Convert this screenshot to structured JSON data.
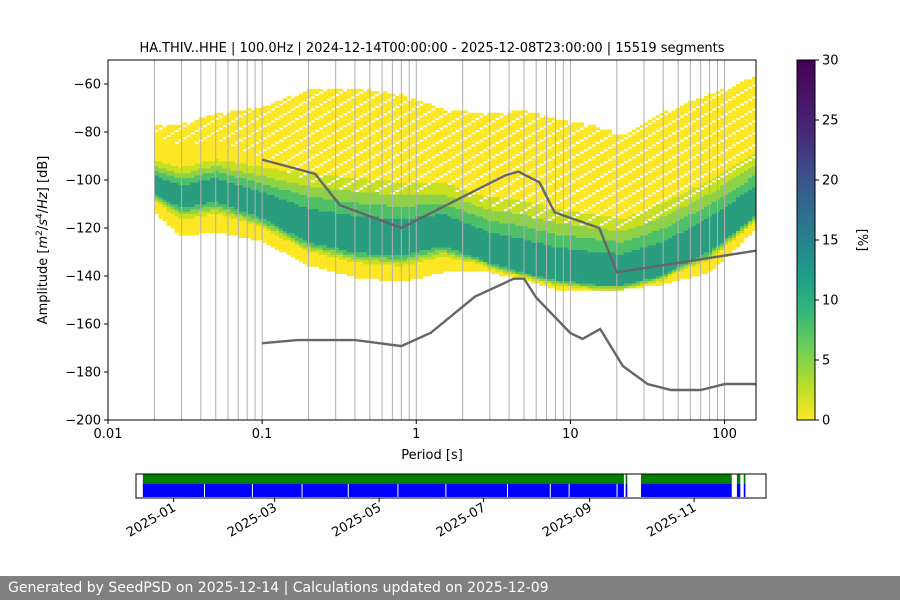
{
  "footer": "Generated by SeedPSD on 2025-12-14 | Calculations updated on 2025-12-09",
  "chart_data": [
    {
      "type": "heatmap",
      "title": "HA.THIV..HHE | 100.0Hz | 2024-12-14T00:00:00 - 2025-12-08T23:00:00 | 15519 segments",
      "xlabel": "Period [s]",
      "ylabel_parts": [
        "Amplitude [",
        "m",
        "2",
        "/",
        "s",
        "4",
        "/",
        "Hz",
        "] [dB]"
      ],
      "x_scale": "log",
      "xlim": [
        0.01,
        160
      ],
      "ylim": [
        -200,
        -50
      ],
      "x_ticks": [
        {
          "value": 0.01,
          "label": "0.01"
        },
        {
          "value": 0.1,
          "label": "0.1"
        },
        {
          "value": 1,
          "label": "1"
        },
        {
          "value": 10,
          "label": "10"
        },
        {
          "value": 100,
          "label": "100"
        }
      ],
      "y_ticks": [
        -60,
        -80,
        -100,
        -120,
        -140,
        -160,
        -180,
        -200
      ],
      "y_tick_labels": [
        "−60",
        "−80",
        "−100",
        "−120",
        "−140",
        "−160",
        "−180",
        "−200"
      ],
      "grid": "vertical gridlines at period bins",
      "grid_periods": [
        0.02,
        0.03,
        0.04,
        0.05,
        0.06,
        0.07,
        0.08,
        0.09,
        0.1,
        0.2,
        0.3,
        0.4,
        0.5,
        0.6,
        0.7,
        0.8,
        0.9,
        1,
        2,
        3,
        4,
        5,
        6,
        7,
        8,
        9,
        10,
        20,
        30,
        40,
        50,
        60,
        70,
        80,
        90,
        100
      ],
      "colorbar": {
        "label": "[%]",
        "range": [
          0,
          30
        ],
        "ticks": [
          0,
          5,
          10,
          15,
          20,
          25,
          30
        ],
        "colormap": "viridis_r"
      },
      "ppsd_envelope": {
        "period": [
          0.02,
          0.03,
          0.05,
          0.1,
          0.2,
          0.4,
          0.8,
          1.5,
          3,
          5,
          8,
          15,
          22,
          40,
          80,
          160
        ],
        "low": [
          -113,
          -123,
          -121,
          -125,
          -135,
          -140,
          -142,
          -138,
          -138,
          -141,
          -145,
          -146,
          -145,
          -143,
          -138,
          -120
        ],
        "high": [
          -77,
          -77,
          -73,
          -70,
          -63,
          -62,
          -65,
          -71,
          -73,
          -71,
          -75,
          -78,
          -82,
          -72,
          -65,
          -57
        ]
      },
      "ppsd_mode": {
        "period": [
          0.02,
          0.03,
          0.05,
          0.1,
          0.2,
          0.4,
          0.8,
          1.5,
          3,
          5,
          8,
          15,
          22,
          40,
          80,
          160
        ],
        "db": [
          -103,
          -108,
          -105,
          -113,
          -123,
          -127,
          -128,
          -124,
          -133,
          -137,
          -140,
          -142,
          -142,
          -138,
          -127,
          -113
        ]
      },
      "series": [
        {
          "name": "NHNM",
          "color": "#666666",
          "x": [
            0.1,
            0.22,
            0.32,
            0.8,
            3.8,
            4.6,
            6.3,
            7.9,
            15.4,
            20,
            354
          ],
          "y": [
            -91.5,
            -97.4,
            -110.5,
            -120,
            -98,
            -96.5,
            -101,
            -113.5,
            -120,
            -138.5,
            -126
          ]
        },
        {
          "name": "NLNM",
          "color": "#666666",
          "x": [
            0.1,
            0.17,
            0.4,
            0.8,
            1.24,
            2.4,
            4.3,
            5,
            6,
            10,
            12,
            15.6,
            21.9,
            31.6,
            45,
            70,
            101,
            154,
            328
          ],
          "y": [
            -168,
            -166.7,
            -166.7,
            -169.2,
            -163.7,
            -148.6,
            -141.1,
            -141.1,
            -149,
            -163.8,
            -166.2,
            -162.1,
            -177.5,
            -185,
            -187.5,
            -187.5,
            -185,
            -185,
            -187.5
          ]
        }
      ]
    },
    {
      "type": "timeline",
      "x_tick_labels": [
        "2025-01",
        "2025-03",
        "2025-05",
        "2025-07",
        "2025-09",
        "2025-11"
      ],
      "x_tick_dates": [
        "2025-01-01",
        "2025-03-01",
        "2025-05-01",
        "2025-07-01",
        "2025-09-01",
        "2025-11-01"
      ],
      "xlim": [
        "2024-12-10",
        "2025-12-13"
      ],
      "colors": {
        "available": "#008000",
        "used": "#0000ff",
        "gap": "#ffffff"
      },
      "available_periods": [
        [
          "2024-12-14",
          "2025-09-21"
        ],
        [
          "2025-09-22",
          "2025-09-23"
        ],
        [
          "2025-10-01",
          "2025-11-23"
        ],
        [
          "2025-11-26",
          "2025-11-28"
        ],
        [
          "2025-11-30",
          "2025-12-01"
        ]
      ],
      "used_periods": [
        [
          "2024-12-14",
          "2025-09-21"
        ],
        [
          "2025-09-22",
          "2025-09-23"
        ],
        [
          "2025-10-01",
          "2025-11-23"
        ],
        [
          "2025-11-26",
          "2025-11-28"
        ],
        [
          "2025-11-30",
          "2025-12-01"
        ]
      ],
      "used_breaks": [
        "2025-01-19",
        "2025-02-16",
        "2025-03-17",
        "2025-04-13",
        "2025-05-12",
        "2025-06-09",
        "2025-07-15",
        "2025-08-09",
        "2025-08-20",
        "2025-09-17"
      ]
    }
  ]
}
